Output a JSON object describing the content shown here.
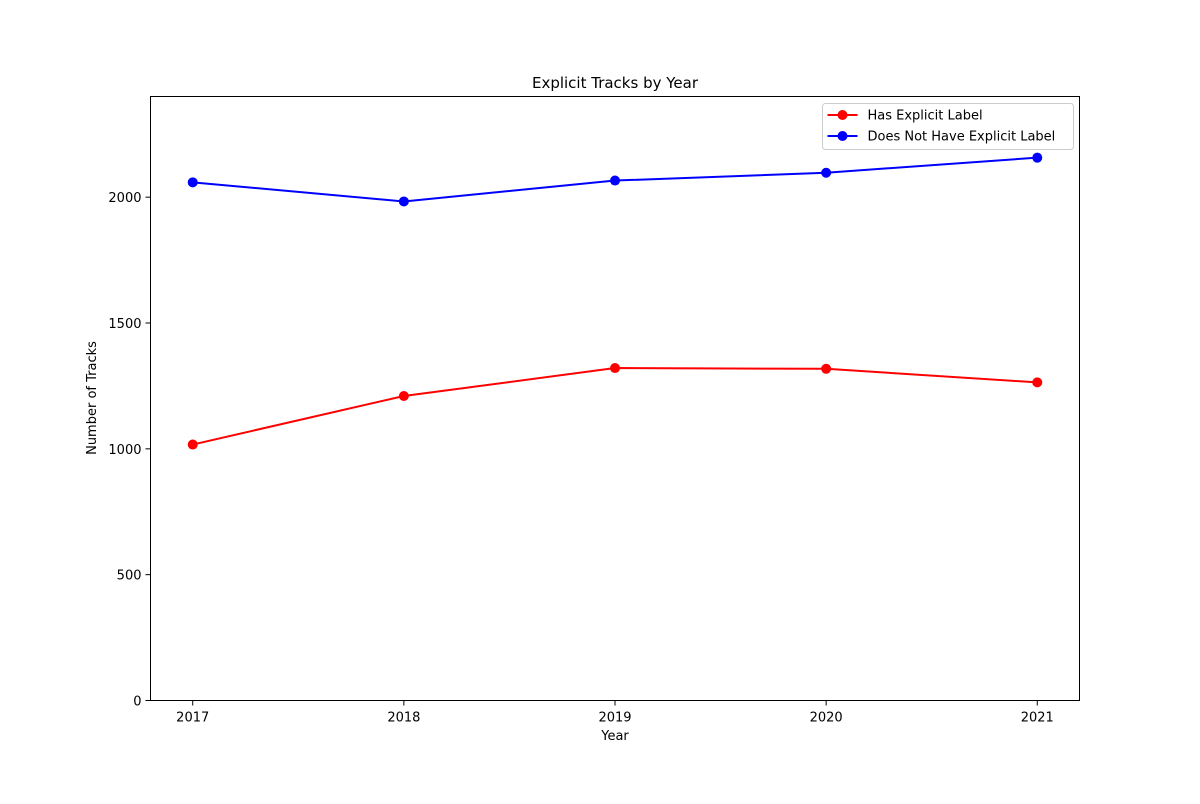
{
  "chart_data": {
    "type": "line",
    "title": "Explicit Tracks by Year",
    "xlabel": "Year",
    "ylabel": "Number of Tracks",
    "x": [
      2017,
      2018,
      2019,
      2020,
      2021
    ],
    "x_tick_labels": [
      "2017",
      "2018",
      "2019",
      "2020",
      "2021"
    ],
    "y_ticks": [
      0,
      500,
      1000,
      1500,
      2000
    ],
    "y_tick_labels": [
      "0",
      "500",
      "1000",
      "1500",
      "2000"
    ],
    "xlim": [
      2016.8,
      2021.2
    ],
    "ylim": [
      0,
      2400
    ],
    "grid": false,
    "legend_position": "top-right",
    "series": [
      {
        "name": "Has Explicit Label",
        "color": "#ff0000",
        "values": [
          1017,
          1210,
          1321,
          1318,
          1264
        ]
      },
      {
        "name": "Does Not Have Explicit Label",
        "color": "#0000ff",
        "values": [
          2059,
          1983,
          2066,
          2097,
          2157
        ]
      }
    ]
  }
}
